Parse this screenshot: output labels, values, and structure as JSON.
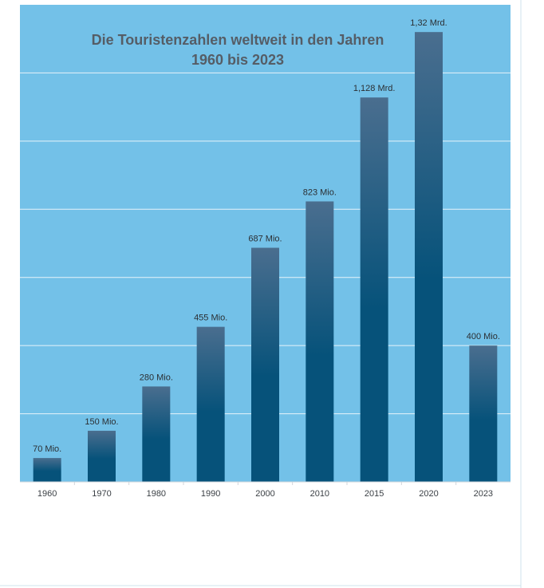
{
  "chart_data": {
    "type": "bar",
    "title_lines": [
      "Die Touristenzahlen weltweit in den Jahren",
      "1960 bis 2023"
    ],
    "categories": [
      "1960",
      "1970",
      "1980",
      "1990",
      "2000",
      "2010",
      "2015",
      "2020",
      "2023"
    ],
    "values": [
      70,
      150,
      280,
      455,
      687,
      823,
      1128,
      1320,
      400
    ],
    "data_labels": [
      "70 Mio.",
      "150 Mio.",
      "280 Mio.",
      "455 Mio.",
      "687 Mio.",
      "823 Mio.",
      "1,128 Mrd.",
      "1,32 Mrd.",
      "400 Mio."
    ],
    "ylim": [
      0,
      1400
    ],
    "gridlines": [
      200,
      400,
      600,
      800,
      1000,
      1200
    ],
    "grid": true,
    "legend": "none",
    "colors": {
      "background": "#73c1e8",
      "bar_top": "#4a6e8f",
      "bar_bottom": "#06527a",
      "gridline": "#e6f3fa"
    }
  }
}
